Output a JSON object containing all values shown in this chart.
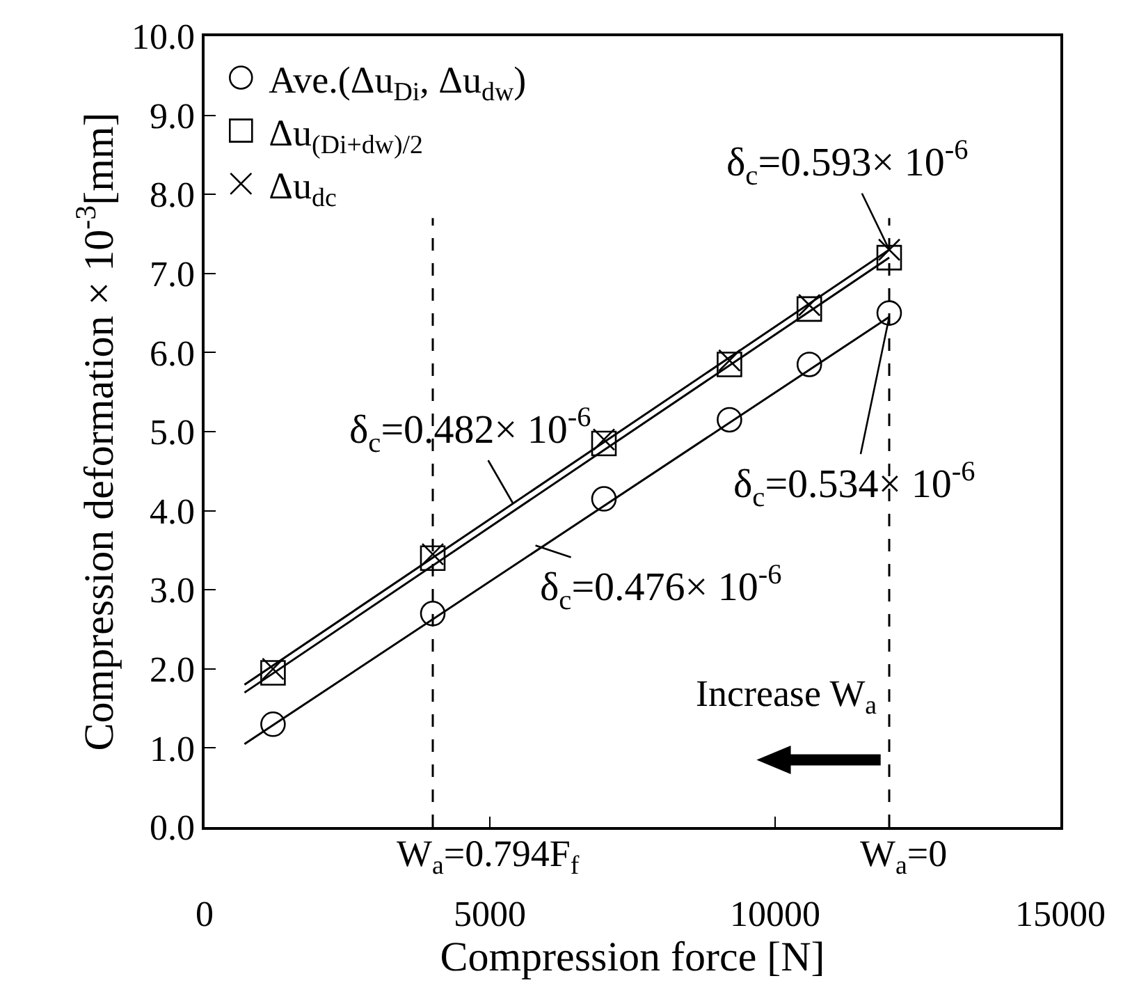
{
  "chart_data": {
    "type": "scatter",
    "xlabel": "Compression force [N]",
    "ylabel": "Compression deformation × 10$^{-3}$[mm]",
    "xlim": [
      0,
      15000
    ],
    "xticks": [
      0,
      5000,
      10000,
      15000
    ],
    "ylim": [
      0,
      10
    ],
    "yticks": [
      {
        "value": 0,
        "label": "0.0"
      },
      {
        "value": 1,
        "label": "1.0"
      },
      {
        "value": 2,
        "label": "2.0"
      },
      {
        "value": 3,
        "label": "3.0"
      },
      {
        "value": 4,
        "label": "4.0"
      },
      {
        "value": 5,
        "label": "5.0"
      },
      {
        "value": 6,
        "label": "6.0"
      },
      {
        "value": 7,
        "label": "7.0"
      },
      {
        "value": 8,
        "label": "8.0"
      },
      {
        "value": 9,
        "label": "9.0"
      },
      {
        "value": 10,
        "label": "10.0"
      }
    ],
    "legend": "top left",
    "series": [
      {
        "name": "Ave.(Δu$_{Di}$, Δu$_{dw}$)",
        "marker": "circle",
        "color": "#000000",
        "x": [
          1200,
          4000,
          7000,
          9200,
          10600,
          12000
        ],
        "values": [
          1.3,
          2.7,
          4.15,
          5.15,
          5.85,
          6.5
        ]
      },
      {
        "name": "Δu$_{(Di+dw)/2}$",
        "marker": "square",
        "color": "#000000",
        "x": [
          1200,
          4000,
          7000,
          9200,
          10600,
          12000
        ],
        "values": [
          1.95,
          3.4,
          4.85,
          5.85,
          6.55,
          7.2
        ]
      },
      {
        "name": "Δu$_{dc}$",
        "marker": "cross",
        "color": "#000000",
        "x": [
          1200,
          4000,
          7000,
          9200,
          10600,
          12000
        ],
        "values": [
          2.0,
          3.45,
          4.9,
          5.9,
          6.6,
          7.3
        ]
      },
      {
        "type": "line",
        "marker": "none",
        "line_style": "solid",
        "color": "#000000",
        "x": [
          700,
          12000
        ],
        "values": [
          1.05,
          6.45
        ]
      },
      {
        "type": "line",
        "marker": "none",
        "line_style": "solid",
        "color": "#000000",
        "x": [
          700,
          12000
        ],
        "values": [
          1.7,
          7.2
        ]
      },
      {
        "type": "line",
        "marker": "none",
        "line_style": "solid",
        "color": "#000000",
        "x": [
          700,
          12000
        ],
        "values": [
          1.8,
          7.3
        ]
      }
    ],
    "ref_lines": [
      {
        "axis": "x",
        "value": 4000,
        "color": "#000000",
        "line_style": "dashed"
      },
      {
        "axis": "x",
        "value": 12000,
        "color": "#000000",
        "line_style": "dashed"
      }
    ],
    "annotations": [
      "W$_{a}$=0.794F$_{f}$",
      "W$_{a}$=0",
      {
        "text": "δ$_{c}$=0.593× 10$^{-6}$",
        "x": 12000,
        "y": 7.3
      },
      {
        "text": "δ$_{c}$=0.482× 10$^{-6}$",
        "x": 5400,
        "y": 4.1
      },
      {
        "text": "δ$_{c}$=0.534× 10$^{-6}$",
        "x": 12000,
        "y": 6.45
      },
      {
        "text": "δ$_{c}$=0.476× 10$^{-6}$",
        "x": 5800,
        "y": 3.56
      },
      "Increase W$_{a}$"
    ]
  }
}
